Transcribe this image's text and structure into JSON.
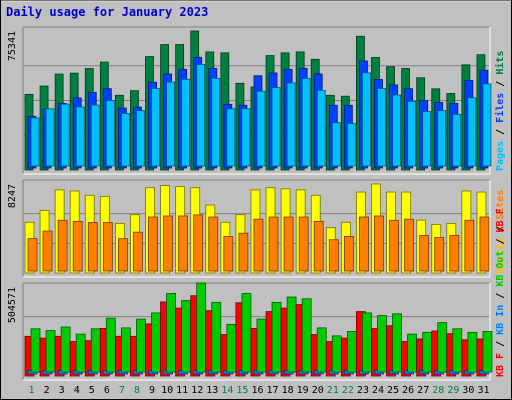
{
  "chart_data": {
    "type": "bar",
    "title": "Daily usage for January 2023",
    "categories": [
      "1",
      "2",
      "3",
      "4",
      "5",
      "6",
      "7",
      "8",
      "9",
      "10",
      "11",
      "12",
      "13",
      "14",
      "15",
      "16",
      "17",
      "18",
      "19",
      "20",
      "21",
      "22",
      "23",
      "24",
      "25",
      "26",
      "27",
      "28",
      "29",
      "30",
      "31"
    ],
    "weekend_days": [
      "1",
      "7",
      "8",
      "14",
      "15",
      "21",
      "22",
      "28",
      "29"
    ],
    "panels": [
      {
        "id": "top",
        "max_label": "75341",
        "ylim": [
          0,
          75341
        ],
        "legend": [
          {
            "text": "Pages",
            "color": "#00c0ff"
          },
          {
            "text": " / ",
            "color": "#000000"
          },
          {
            "text": "Files",
            "color": "#0040ff"
          },
          {
            "text": " / ",
            "color": "#000000"
          },
          {
            "text": "Hits",
            "color": "#008040"
          }
        ],
        "series": [
          {
            "name": "Hits",
            "color": "#008040",
            "values": [
              41000,
              45500,
              52000,
              52500,
              55000,
              58500,
              40500,
              43000,
              61500,
              68000,
              68000,
              75341,
              64000,
              63500,
              47000,
              45000,
              62000,
              63500,
              64000,
              60000,
              40500,
              40000,
              72500,
              61000,
              56000,
              55000,
              50000,
              44000,
              41500,
              57000,
              62500
            ]
          },
          {
            "name": "Files",
            "color": "#0040ff",
            "values": [
              28000,
              32000,
              35000,
              38000,
              41000,
              43000,
              32500,
              33000,
              46500,
              51000,
              53500,
              60000,
              54000,
              34500,
              34000,
              50000,
              51500,
              53500,
              54000,
              51000,
              34000,
              34000,
              58000,
              48000,
              45000,
              43000,
              36500,
              35500,
              35000,
              47500,
              53000
            ]
          },
          {
            "name": "Pages",
            "color": "#00c0ff",
            "values": [
              26000,
              31000,
              33500,
              32000,
              33000,
              35500,
              28500,
              30000,
              42000,
              45500,
              47000,
              55000,
              47500,
              31000,
              31000,
              40500,
              42500,
              45000,
              47500,
              41000,
              23500,
              23000,
              50500,
              42000,
              38500,
              35000,
              29500,
              30000,
              28000,
              37000,
              44500
            ]
          }
        ]
      },
      {
        "id": "middle",
        "max_label": "8247",
        "ylim": [
          0,
          8247
        ],
        "legend": [
          {
            "text": "Visits",
            "color": "#ffc000"
          },
          {
            "text": " / ",
            "color": "#000000"
          },
          {
            "text": "Sites",
            "color": "#ff8000"
          }
        ],
        "series": [
          {
            "name": "Visits",
            "color": "#ffff00",
            "values": [
              4700,
              5800,
              7700,
              7600,
              7200,
              7100,
              4600,
              5400,
              7900,
              8100,
              8000,
              7900,
              6300,
              4700,
              5400,
              7700,
              7900,
              7800,
              7700,
              7200,
              4200,
              4700,
              7500,
              8247,
              7500,
              7500,
              4900,
              4500,
              4600,
              7600,
              7500
            ]
          },
          {
            "name": "Sites",
            "color": "#ff8000",
            "values": [
              3000,
              3700,
              4700,
              4600,
              4500,
              4500,
              3000,
              3600,
              5000,
              5100,
              5100,
              5200,
              5000,
              3200,
              3500,
              4800,
              5000,
              5000,
              5000,
              4600,
              2900,
              3200,
              5000,
              5100,
              4700,
              4800,
              3300,
              3100,
              3300,
              4700,
              5000
            ]
          }
        ]
      },
      {
        "id": "bottom",
        "max_label": "504571",
        "ylim": [
          0,
          504571
        ],
        "legend": [
          {
            "text": "KB F",
            "color": "#ff0000"
          },
          {
            "text": " / ",
            "color": "#000000"
          },
          {
            "text": "KB In",
            "color": "#0080ff"
          },
          {
            "text": " / ",
            "color": "#000000"
          },
          {
            "text": "KB Out",
            "color": "#00cc00"
          },
          {
            "text": " / ",
            "color": "#000000"
          },
          {
            "text": "KB F",
            "color": "#ff0000"
          }
        ],
        "series": [
          {
            "name": "KB F",
            "color": "#ff0000",
            "values": [
              225000,
              215000,
              225000,
              195000,
              200000,
              270000,
              225000,
              225000,
              295000,
              420000,
              385000,
              455000,
              370000,
              235000,
              415000,
              270000,
              365000,
              385000,
              405000,
              235000,
              195000,
              215000,
              365000,
              270000,
              285000,
              195000,
              210000,
              255000,
              240000,
              205000,
              210000
            ]
          },
          {
            "name": "KB In",
            "color": "#0080ff",
            "values": [
              20000,
              20000,
              20000,
              20000,
              20000,
              20000,
              20000,
              20000,
              20000,
              20000,
              20000,
              20000,
              20000,
              20000,
              20000,
              20000,
              20000,
              20000,
              20000,
              20000,
              20000,
              20000,
              20000,
              20000,
              20000,
              20000,
              20000,
              20000,
              20000,
              20000,
              20000
            ]
          },
          {
            "name": "KB Out",
            "color": "#00cc00",
            "values": [
              245000,
              235000,
              255000,
              215000,
              245000,
              305000,
              250000,
              300000,
              335000,
              445000,
              405000,
              504571,
              395000,
              270000,
              445000,
              300000,
              395000,
              425000,
              415000,
              250000,
              205000,
              230000,
              335000,
              320000,
              330000,
              215000,
              225000,
              280000,
              245000,
              225000,
              230000
            ]
          }
        ]
      }
    ]
  }
}
